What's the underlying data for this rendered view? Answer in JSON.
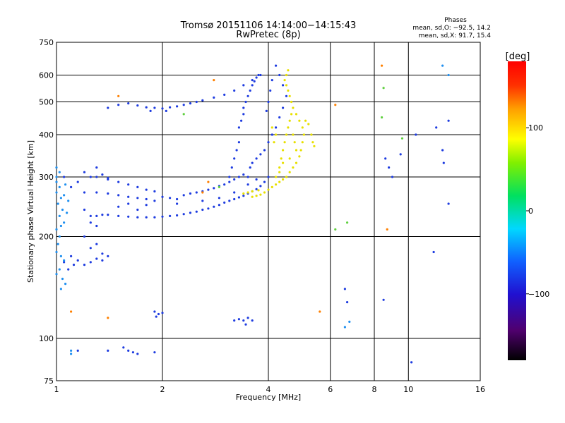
{
  "header": {
    "title_line1": "Tromsø 20151106 14:14:00−14:15:43",
    "title_line2": "RwPretec (8p)",
    "phases_heading": "Phases",
    "phases_o": "mean, sd,O: −92.5, 14.2",
    "phases_x": "mean, sd,X:  91.7, 15.4"
  },
  "chart_data": {
    "type": "scatter",
    "xlabel": "Frequency [MHz]",
    "ylabel": "Stationary phase Virtual Height [km]",
    "x_scale": "log",
    "y_scale": "log",
    "xlim": [
      1,
      16
    ],
    "ylim": [
      75,
      750
    ],
    "x_ticks": [
      1,
      2,
      4,
      6,
      8,
      10,
      16
    ],
    "y_ticks": [
      75,
      100,
      200,
      300,
      400,
      500,
      600,
      750
    ],
    "grid": true,
    "colorbar": {
      "label": "[deg]",
      "range": [
        -180,
        180
      ],
      "ticks": [
        100,
        0,
        -100
      ],
      "colormap": "rainbow: black-purple-blue-cyan-green-yellow-orange-red"
    },
    "series": [
      {
        "name": "",
        "color": "#1e3ce0",
        "points": [
          [
            1.3,
            230
          ],
          [
            1.35,
            232
          ],
          [
            1.4,
            232
          ],
          [
            1.5,
            230
          ],
          [
            1.6,
            229
          ],
          [
            1.7,
            228
          ],
          [
            1.8,
            228
          ],
          [
            1.9,
            228
          ],
          [
            2.0,
            229
          ],
          [
            2.1,
            230
          ],
          [
            2.2,
            231
          ],
          [
            2.3,
            233
          ],
          [
            2.4,
            235
          ],
          [
            2.5,
            237
          ],
          [
            2.6,
            240
          ],
          [
            2.7,
            242
          ],
          [
            2.8,
            245
          ],
          [
            2.9,
            248
          ],
          [
            3.0,
            252
          ],
          [
            3.1,
            255
          ],
          [
            3.2,
            258
          ],
          [
            3.3,
            261
          ],
          [
            3.4,
            264
          ],
          [
            3.5,
            268
          ],
          [
            3.6,
            272
          ],
          [
            3.7,
            276
          ],
          [
            3.8,
            282
          ],
          [
            3.9,
            290
          ],
          [
            4.0,
            300
          ],
          [
            1.3,
            270
          ],
          [
            1.4,
            268
          ],
          [
            1.5,
            265
          ],
          [
            1.6,
            262
          ],
          [
            1.7,
            260
          ],
          [
            1.8,
            258
          ],
          [
            1.9,
            255
          ],
          [
            2.0,
            262
          ],
          [
            2.1,
            260
          ],
          [
            2.2,
            258
          ],
          [
            2.3,
            265
          ],
          [
            2.4,
            268
          ],
          [
            2.5,
            270
          ],
          [
            2.6,
            272
          ],
          [
            2.7,
            275
          ],
          [
            2.8,
            278
          ],
          [
            2.9,
            282
          ],
          [
            3.0,
            285
          ],
          [
            3.1,
            290
          ],
          [
            3.2,
            295
          ],
          [
            3.3,
            300
          ],
          [
            3.4,
            305
          ],
          [
            1.3,
            300
          ],
          [
            1.4,
            295
          ],
          [
            1.5,
            290
          ],
          [
            1.6,
            285
          ],
          [
            1.7,
            280
          ],
          [
            1.8,
            275
          ],
          [
            1.9,
            272
          ],
          [
            1.2,
            310
          ],
          [
            1.25,
            300
          ],
          [
            1.3,
            320
          ],
          [
            1.35,
            305
          ],
          [
            1.4,
            298
          ],
          [
            1.5,
            245
          ],
          [
            1.6,
            250
          ],
          [
            1.7,
            240
          ],
          [
            1.8,
            248
          ],
          [
            2.2,
            250
          ],
          [
            2.6,
            255
          ],
          [
            2.9,
            260
          ],
          [
            3.2,
            270
          ],
          [
            3.5,
            285
          ],
          [
            3.7,
            295
          ],
          [
            1.6,
            495
          ],
          [
            1.7,
            488
          ],
          [
            1.8,
            482
          ],
          [
            1.9,
            480
          ],
          [
            2.0,
            478
          ],
          [
            2.1,
            482
          ],
          [
            2.2,
            485
          ],
          [
            2.3,
            490
          ],
          [
            2.4,
            495
          ],
          [
            2.5,
            500
          ],
          [
            2.6,
            505
          ],
          [
            2.8,
            515
          ],
          [
            3.0,
            525
          ],
          [
            3.2,
            540
          ],
          [
            3.4,
            560
          ],
          [
            3.6,
            580
          ],
          [
            3.8,
            600
          ],
          [
            1.4,
            480
          ],
          [
            1.5,
            490
          ],
          [
            1.85,
            470
          ],
          [
            2.05,
            470
          ],
          [
            3.1,
            300
          ],
          [
            3.15,
            320
          ],
          [
            3.2,
            340
          ],
          [
            3.25,
            360
          ],
          [
            3.3,
            380
          ],
          [
            3.3,
            420
          ],
          [
            3.35,
            440
          ],
          [
            3.4,
            460
          ],
          [
            3.4,
            480
          ],
          [
            3.45,
            500
          ],
          [
            3.5,
            520
          ],
          [
            3.55,
            540
          ],
          [
            3.6,
            560
          ],
          [
            3.65,
            575
          ],
          [
            3.7,
            590
          ],
          [
            3.75,
            600
          ],
          [
            3.5,
            300
          ],
          [
            3.55,
            320
          ],
          [
            3.6,
            330
          ],
          [
            3.7,
            340
          ],
          [
            3.8,
            350
          ],
          [
            3.9,
            360
          ],
          [
            4.0,
            380
          ],
          [
            4.1,
            400
          ],
          [
            4.2,
            420
          ],
          [
            4.3,
            450
          ],
          [
            4.4,
            480
          ],
          [
            4.5,
            520
          ],
          [
            4.4,
            560
          ],
          [
            4.3,
            600
          ],
          [
            4.2,
            640
          ],
          [
            4.1,
            580
          ],
          [
            4.05,
            540
          ],
          [
            4.0,
            500
          ],
          [
            3.95,
            470
          ],
          [
            1.05,
            300
          ],
          [
            1.1,
            280
          ],
          [
            1.15,
            290
          ],
          [
            1.2,
            270
          ],
          [
            1.2,
            240
          ],
          [
            1.25,
            230
          ],
          [
            1.3,
            215
          ],
          [
            1.3,
            190
          ],
          [
            1.25,
            185
          ],
          [
            1.35,
            178
          ],
          [
            1.4,
            175
          ],
          [
            1.35,
            170
          ],
          [
            1.3,
            172
          ],
          [
            1.25,
            168
          ],
          [
            1.2,
            165
          ],
          [
            1.15,
            170
          ],
          [
            1.1,
            175
          ],
          [
            1.05,
            168
          ],
          [
            1.08,
            160
          ],
          [
            1.12,
            165
          ],
          [
            1.2,
            200
          ],
          [
            1.25,
            220
          ],
          [
            1.9,
            120
          ],
          [
            1.95,
            118
          ],
          [
            2.0,
            119
          ],
          [
            1.92,
            116
          ],
          [
            3.2,
            113
          ],
          [
            3.3,
            114
          ],
          [
            3.4,
            113
          ],
          [
            3.5,
            115
          ],
          [
            3.6,
            113
          ],
          [
            3.45,
            110
          ],
          [
            1.4,
            92
          ],
          [
            1.55,
            94
          ],
          [
            1.6,
            92
          ],
          [
            1.65,
            91
          ],
          [
            1.7,
            90
          ],
          [
            1.9,
            91
          ],
          [
            1.15,
            92
          ],
          [
            8.6,
            340
          ],
          [
            8.8,
            320
          ],
          [
            9.0,
            300
          ],
          [
            9.5,
            350
          ],
          [
            10.5,
            400
          ],
          [
            12.0,
            420
          ],
          [
            12.5,
            360
          ],
          [
            12.6,
            330
          ],
          [
            13.0,
            440
          ],
          [
            13.0,
            250
          ],
          [
            11.8,
            180
          ],
          [
            10.2,
            85
          ],
          [
            8.5,
            130
          ],
          [
            6.6,
            140
          ],
          [
            6.7,
            128
          ]
        ]
      },
      {
        "name": "",
        "color": "#e8e000",
        "points": [
          [
            3.6,
            262
          ],
          [
            3.7,
            264
          ],
          [
            3.8,
            266
          ],
          [
            3.9,
            270
          ],
          [
            4.0,
            275
          ],
          [
            4.1,
            280
          ],
          [
            4.2,
            285
          ],
          [
            4.3,
            290
          ],
          [
            4.4,
            295
          ],
          [
            4.5,
            300
          ],
          [
            4.6,
            310
          ],
          [
            4.7,
            320
          ],
          [
            4.8,
            330
          ],
          [
            4.9,
            345
          ],
          [
            4.95,
            360
          ],
          [
            5.0,
            380
          ],
          [
            5.05,
            400
          ],
          [
            5.0,
            420
          ],
          [
            4.9,
            440
          ],
          [
            4.8,
            460
          ],
          [
            4.7,
            480
          ],
          [
            4.65,
            500
          ],
          [
            4.6,
            520
          ],
          [
            4.55,
            540
          ],
          [
            4.5,
            560
          ],
          [
            4.45,
            580
          ],
          [
            4.5,
            600
          ],
          [
            4.55,
            620
          ],
          [
            4.2,
            300
          ],
          [
            4.3,
            320
          ],
          [
            4.35,
            340
          ],
          [
            4.4,
            360
          ],
          [
            4.45,
            380
          ],
          [
            4.5,
            400
          ],
          [
            4.55,
            420
          ],
          [
            4.6,
            440
          ],
          [
            4.65,
            460
          ],
          [
            4.7,
            400
          ],
          [
            4.75,
            380
          ],
          [
            4.8,
            360
          ],
          [
            4.6,
            340
          ],
          [
            4.4,
            330
          ],
          [
            4.3,
            310
          ],
          [
            4.2,
            400
          ],
          [
            4.1,
            420
          ],
          [
            4.15,
            380
          ],
          [
            5.1,
            440
          ],
          [
            5.2,
            430
          ],
          [
            5.3,
            400
          ],
          [
            5.4,
            370
          ],
          [
            5.35,
            380
          ],
          [
            3.4,
            268
          ],
          [
            3.5,
            270
          ],
          [
            3.6,
            272
          ],
          [
            3.75,
            274
          ]
        ]
      },
      {
        "name": "",
        "color": "#2090f0",
        "points": [
          [
            1.0,
            300
          ],
          [
            1.0,
            290
          ],
          [
            1.02,
            280
          ],
          [
            1.0,
            270
          ],
          [
            1.03,
            260
          ],
          [
            1.01,
            250
          ],
          [
            1.04,
            240
          ],
          [
            1.02,
            230
          ],
          [
            1.05,
            220
          ],
          [
            1.0,
            210
          ],
          [
            1.02,
            200
          ],
          [
            1.01,
            190
          ],
          [
            1.0,
            180
          ],
          [
            1.03,
            175
          ],
          [
            1.05,
            170
          ],
          [
            1.02,
            160
          ],
          [
            1.0,
            155
          ],
          [
            1.04,
            150
          ],
          [
            1.06,
            145
          ],
          [
            1.03,
            140
          ],
          [
            1.0,
            320
          ],
          [
            1.02,
            310
          ],
          [
            1.06,
            285
          ],
          [
            1.08,
            255
          ],
          [
            1.07,
            235
          ],
          [
            1.05,
            265
          ],
          [
            1.03,
            215
          ],
          [
            1.1,
            92
          ],
          [
            1.1,
            90
          ],
          [
            6.8,
            112
          ],
          [
            6.6,
            108
          ],
          [
            12.5,
            640
          ],
          [
            13.0,
            600
          ]
        ]
      },
      {
        "name": "",
        "color": "#ff8000",
        "points": [
          [
            1.5,
            520
          ],
          [
            2.8,
            580
          ],
          [
            6.2,
            490
          ],
          [
            8.4,
            640
          ],
          [
            8.7,
            210
          ],
          [
            1.1,
            120
          ],
          [
            1.4,
            115
          ],
          [
            5.6,
            120
          ],
          [
            2.6,
            270
          ],
          [
            2.7,
            290
          ]
        ]
      },
      {
        "name": "",
        "color": "#60d040",
        "points": [
          [
            8.5,
            550
          ],
          [
            8.4,
            450
          ],
          [
            9.6,
            390
          ],
          [
            2.3,
            460
          ],
          [
            2.9,
            280
          ],
          [
            6.2,
            210
          ],
          [
            6.7,
            220
          ]
        ]
      }
    ]
  }
}
